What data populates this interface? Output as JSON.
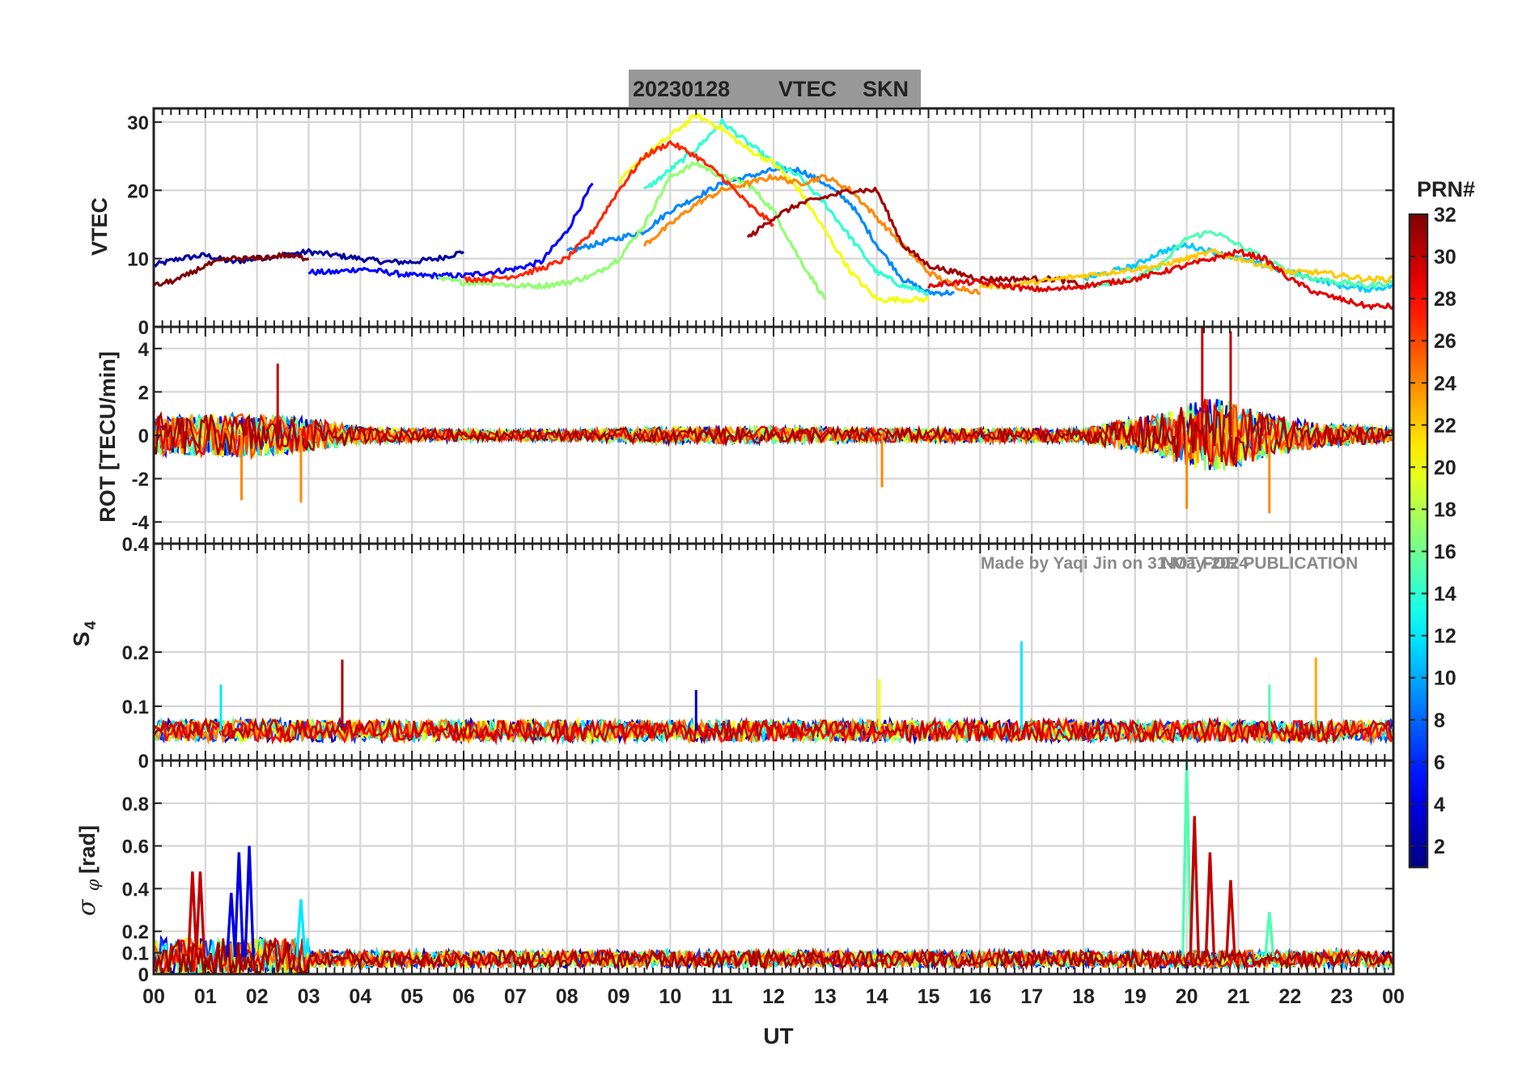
{
  "title_bar": {
    "date": "20230128",
    "product": "VTEC",
    "station": "SKN",
    "bg": "#999999"
  },
  "watermark": {
    "credit": "Made by Yaqi Jin on 31-May-2024",
    "notice": "NOT FOR PUBLICATION",
    "color": "#8a8a8a"
  },
  "x_axis": {
    "label": "UT",
    "range": [
      0,
      24
    ],
    "tick_labels": [
      "00",
      "01",
      "02",
      "03",
      "04",
      "05",
      "06",
      "07",
      "08",
      "09",
      "10",
      "11",
      "12",
      "13",
      "14",
      "15",
      "16",
      "17",
      "18",
      "19",
      "20",
      "21",
      "22",
      "23",
      "00"
    ]
  },
  "colorbar": {
    "title": "PRN#",
    "range": [
      1,
      32
    ],
    "tick_labels": [
      "2",
      "4",
      "6",
      "8",
      "10",
      "12",
      "14",
      "16",
      "18",
      "20",
      "22",
      "24",
      "26",
      "28",
      "30",
      "32"
    ],
    "colormap": "jet"
  },
  "chart_data": [
    {
      "type": "line",
      "name": "vtec-panel",
      "ylabel": "VTEC",
      "ylim": [
        0,
        32
      ],
      "yticks": [
        "0",
        "10",
        "20",
        "30"
      ],
      "grid": true,
      "series": [
        {
          "name": "PRN 2",
          "prn": 2,
          "x": [
            0,
            0.5,
            1,
            1.5,
            2,
            2.5,
            3,
            3.5,
            4,
            4.5,
            5,
            5.5,
            6
          ],
          "values": [
            9,
            10,
            10.5,
            9.5,
            10,
            10.5,
            11,
            10.5,
            10,
            9.5,
            9.5,
            10,
            11
          ]
        },
        {
          "name": "PRN 5",
          "prn": 5,
          "x": [
            3,
            3.5,
            4,
            4.5,
            5,
            5.5,
            6,
            6.5,
            7,
            7.5,
            8,
            8.5
          ],
          "values": [
            8,
            8,
            8.5,
            8,
            7.5,
            7.5,
            7.5,
            8,
            8.5,
            9.5,
            14,
            21
          ]
        },
        {
          "name": "PRN 9",
          "prn": 9,
          "x": [
            8,
            8.5,
            9,
            9.5,
            10,
            10.5,
            11,
            11.5,
            12,
            12.5,
            13,
            13.5,
            14,
            14.5,
            15,
            15.5
          ],
          "values": [
            11,
            12,
            13,
            14,
            17,
            19,
            21,
            22,
            23,
            23,
            21,
            18,
            12,
            7,
            5,
            5
          ]
        },
        {
          "name": "PRN 14",
          "prn": 14,
          "x": [
            9.5,
            10,
            10.5,
            11,
            11.5,
            12,
            12.5,
            13,
            13.5,
            14,
            14.5,
            15
          ],
          "values": [
            20,
            23,
            26,
            30,
            27,
            24,
            22,
            18,
            13,
            8,
            6,
            5
          ]
        },
        {
          "name": "PRN 17",
          "prn": 17,
          "x": [
            5.5,
            6,
            6.5,
            7,
            7.5,
            8,
            8.5,
            9,
            9.5,
            10,
            10.5,
            11,
            11.5,
            12,
            12.5,
            13
          ],
          "values": [
            7,
            6.5,
            6.5,
            6,
            6,
            6.5,
            7.5,
            10,
            15,
            22,
            24,
            22,
            21,
            17,
            10,
            4
          ]
        },
        {
          "name": "PRN 20",
          "prn": 20,
          "x": [
            9,
            9.5,
            10,
            10.5,
            11,
            11.5,
            12,
            12.5,
            13,
            13.5,
            14,
            14.5,
            15
          ],
          "values": [
            21,
            25,
            28,
            31,
            29,
            26,
            24,
            20,
            14,
            8,
            4,
            4,
            4
          ]
        },
        {
          "name": "PRN 24",
          "prn": 24,
          "x": [
            9.5,
            10,
            10.5,
            11,
            11.5,
            12,
            12.5,
            13,
            13.5,
            14,
            14.5,
            15,
            15.5,
            16
          ],
          "values": [
            12,
            15,
            18,
            20,
            21,
            22,
            21,
            22,
            20,
            16,
            12,
            8,
            6,
            5
          ]
        },
        {
          "name": "PRN 27",
          "prn": 27,
          "x": [
            6,
            6.5,
            7,
            7.5,
            8,
            8.5,
            9,
            9.5,
            10,
            10.5,
            11,
            11.5,
            12
          ],
          "values": [
            7,
            7,
            7.5,
            8.5,
            10,
            14,
            20,
            25,
            27,
            25,
            22,
            18,
            15
          ]
        },
        {
          "name": "PRN 31",
          "prn": 31,
          "x": [
            11.5,
            12,
            12.5,
            13,
            13.5,
            14,
            14.5,
            15,
            15.5,
            16,
            16.5,
            17,
            17.5,
            18
          ],
          "values": [
            13,
            16,
            18,
            19,
            20,
            20,
            12,
            9,
            8,
            7,
            7,
            7,
            7,
            6
          ]
        },
        {
          "name": "PRN 11",
          "prn": 11,
          "x": [
            18,
            18.5,
            19,
            19.5,
            20,
            20.5,
            21,
            21.5,
            22,
            22.5,
            23,
            23.5,
            24
          ],
          "values": [
            7,
            8,
            9,
            11,
            12,
            11,
            10,
            9,
            8,
            7,
            6,
            5.5,
            6
          ]
        },
        {
          "name": "PRN 15",
          "prn": 15,
          "x": [
            18,
            18.5,
            19,
            19.5,
            20,
            20.5,
            21,
            21.5,
            22,
            22.5,
            23,
            23.5,
            24
          ],
          "values": [
            6,
            6.5,
            7,
            9,
            13,
            14,
            12,
            10,
            8,
            7,
            6.5,
            6,
            6.5
          ]
        },
        {
          "name": "PRN 22",
          "prn": 22,
          "x": [
            16,
            16.5,
            17,
            17.5,
            18,
            18.5,
            19,
            19.5,
            20,
            20.5,
            21,
            21.5,
            22,
            22.5,
            23,
            23.5,
            24
          ],
          "values": [
            6,
            6,
            6.5,
            7,
            7.5,
            8,
            8.5,
            9,
            10,
            11,
            10,
            9,
            8,
            8,
            7.5,
            7,
            7
          ]
        },
        {
          "name": "PRN 29",
          "prn": 29,
          "x": [
            15,
            15.5,
            16,
            16.5,
            17,
            17.5,
            18,
            18.5,
            19,
            19.5,
            20,
            20.5,
            21,
            21.5,
            22,
            22.5,
            23,
            23.5,
            24
          ],
          "values": [
            6,
            6.5,
            6.5,
            6,
            5.5,
            5.5,
            6,
            6.5,
            7,
            8,
            9,
            10,
            11,
            10,
            7,
            5,
            4,
            3,
            3
          ]
        },
        {
          "name": "PRN 32",
          "prn": 32,
          "x": [
            0,
            0.5,
            1,
            1.5,
            2,
            2.5,
            3
          ],
          "values": [
            6,
            7,
            9,
            10,
            10,
            10.5,
            10
          ]
        }
      ]
    },
    {
      "type": "line",
      "name": "rot-panel",
      "ylabel": "ROT [TECU/min]",
      "ylim": [
        -5,
        5
      ],
      "yticks": [
        "-4",
        "-2",
        "0",
        "2",
        "4"
      ],
      "grid": true,
      "noise": {
        "description": "dense per-PRN fluctuations about zero",
        "envelope_x": [
          0,
          1,
          2,
          3,
          4,
          6,
          8,
          10,
          12,
          14,
          16,
          18,
          19.5,
          20.5,
          21.5,
          22.5,
          24
        ],
        "envelope_amp": [
          1.5,
          1.5,
          1.6,
          1.2,
          0.6,
          0.4,
          0.4,
          0.6,
          0.6,
          0.5,
          0.5,
          0.5,
          1.6,
          2.8,
          1.6,
          0.9,
          0.5
        ]
      },
      "spikes": [
        {
          "x": 1.7,
          "value": -3.0
        },
        {
          "x": 2.4,
          "value": 3.3
        },
        {
          "x": 2.85,
          "value": -3.1
        },
        {
          "x": 14.1,
          "value": -2.4
        },
        {
          "x": 20.3,
          "value": 5.0
        },
        {
          "x": 20.85,
          "value": 4.8
        },
        {
          "x": 20.0,
          "value": -3.4
        },
        {
          "x": 21.6,
          "value": -3.6
        }
      ]
    },
    {
      "type": "line",
      "name": "s4-panel",
      "ylabel": "S4",
      "ylim": [
        0,
        0.4
      ],
      "yticks": [
        "0",
        "0.1",
        "0.2",
        "0.4"
      ],
      "grid": true,
      "baseline": 0.055,
      "baseline_spread": 0.02,
      "spikes": [
        {
          "x": 3.65,
          "value": 0.186,
          "prn": 31
        },
        {
          "x": 16.8,
          "value": 0.22,
          "prn": 12
        },
        {
          "x": 22.5,
          "value": 0.19,
          "prn": 23
        },
        {
          "x": 14.05,
          "value": 0.15,
          "prn": 20
        },
        {
          "x": 1.3,
          "value": 0.14,
          "prn": 12
        },
        {
          "x": 10.5,
          "value": 0.13,
          "prn": 3
        },
        {
          "x": 21.6,
          "value": 0.14,
          "prn": 15
        }
      ]
    },
    {
      "type": "line",
      "name": "sigma-phi-panel",
      "ylabel": "σ φ [rad]",
      "ylim": [
        0,
        1.0
      ],
      "yticks": [
        "0",
        "0.1",
        "0.2",
        "0.4",
        "0.6",
        "0.8"
      ],
      "grid": true,
      "baseline": 0.07,
      "baseline_spread": 0.04,
      "spikes": [
        {
          "x": 0.75,
          "value": 0.48,
          "prn": 30
        },
        {
          "x": 0.9,
          "value": 0.48,
          "prn": 30
        },
        {
          "x": 1.5,
          "value": 0.38,
          "prn": 4
        },
        {
          "x": 1.65,
          "value": 0.57,
          "prn": 4
        },
        {
          "x": 1.85,
          "value": 0.6,
          "prn": 4
        },
        {
          "x": 2.85,
          "value": 0.35,
          "prn": 12
        },
        {
          "x": 20.0,
          "value": 1.0,
          "prn": 15
        },
        {
          "x": 20.15,
          "value": 0.74,
          "prn": 30
        },
        {
          "x": 20.45,
          "value": 0.57,
          "prn": 30
        },
        {
          "x": 20.85,
          "value": 0.44,
          "prn": 30
        },
        {
          "x": 21.6,
          "value": 0.29,
          "prn": 15
        }
      ]
    }
  ]
}
